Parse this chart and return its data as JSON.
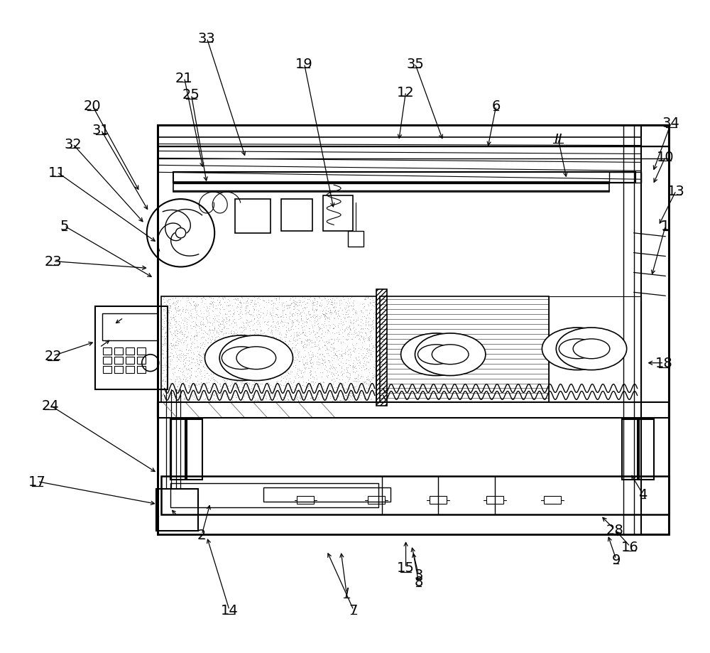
{
  "bg_color": "#ffffff",
  "lc": "#000000",
  "figsize": [
    10.0,
    9.2
  ],
  "dpi": 100,
  "label_fs": 14,
  "labels": [
    [
      "1",
      940,
      318,
      920,
      390,
      false
    ],
    [
      "2",
      283,
      755,
      295,
      710,
      false
    ],
    [
      "3",
      590,
      812,
      580,
      770,
      false
    ],
    [
      "4",
      908,
      698,
      890,
      668,
      false
    ],
    [
      "5",
      88,
      318,
      215,
      392,
      false
    ],
    [
      "6",
      700,
      148,
      688,
      208,
      false
    ],
    [
      "7",
      498,
      862,
      460,
      778,
      false
    ],
    [
      "8",
      590,
      822,
      582,
      778,
      false
    ],
    [
      "9",
      870,
      790,
      858,
      755,
      false
    ],
    [
      "10",
      940,
      220,
      922,
      260,
      false
    ],
    [
      "11",
      78,
      242,
      220,
      342,
      false
    ],
    [
      "12",
      572,
      128,
      562,
      198,
      false
    ],
    [
      "13",
      955,
      268,
      930,
      318,
      false
    ],
    [
      "14",
      322,
      862,
      290,
      758,
      false
    ],
    [
      "15",
      572,
      802,
      572,
      762,
      false
    ],
    [
      "16",
      890,
      772,
      868,
      748,
      false
    ],
    [
      "17",
      50,
      680,
      220,
      712,
      false
    ],
    [
      "18",
      938,
      512,
      912,
      512,
      false
    ],
    [
      "19",
      428,
      88,
      470,
      295,
      false
    ],
    [
      "20",
      128,
      148,
      195,
      270,
      false
    ],
    [
      "21",
      258,
      108,
      285,
      238,
      false
    ],
    [
      "22",
      72,
      502,
      132,
      482,
      false
    ],
    [
      "23",
      72,
      368,
      208,
      378,
      false
    ],
    [
      "24",
      68,
      572,
      220,
      668,
      false
    ],
    [
      "25",
      268,
      132,
      290,
      258,
      false
    ],
    [
      "28",
      868,
      748,
      848,
      728,
      false
    ],
    [
      "31",
      140,
      182,
      208,
      298,
      false
    ],
    [
      "32",
      100,
      202,
      202,
      315,
      false
    ],
    [
      "33",
      290,
      52,
      345,
      222,
      false
    ],
    [
      "34",
      948,
      172,
      922,
      242,
      false
    ],
    [
      "35",
      585,
      88,
      625,
      198,
      false
    ],
    [
      "I",
      488,
      838,
      480,
      778,
      true
    ],
    [
      "II",
      788,
      195,
      800,
      252,
      true
    ]
  ]
}
